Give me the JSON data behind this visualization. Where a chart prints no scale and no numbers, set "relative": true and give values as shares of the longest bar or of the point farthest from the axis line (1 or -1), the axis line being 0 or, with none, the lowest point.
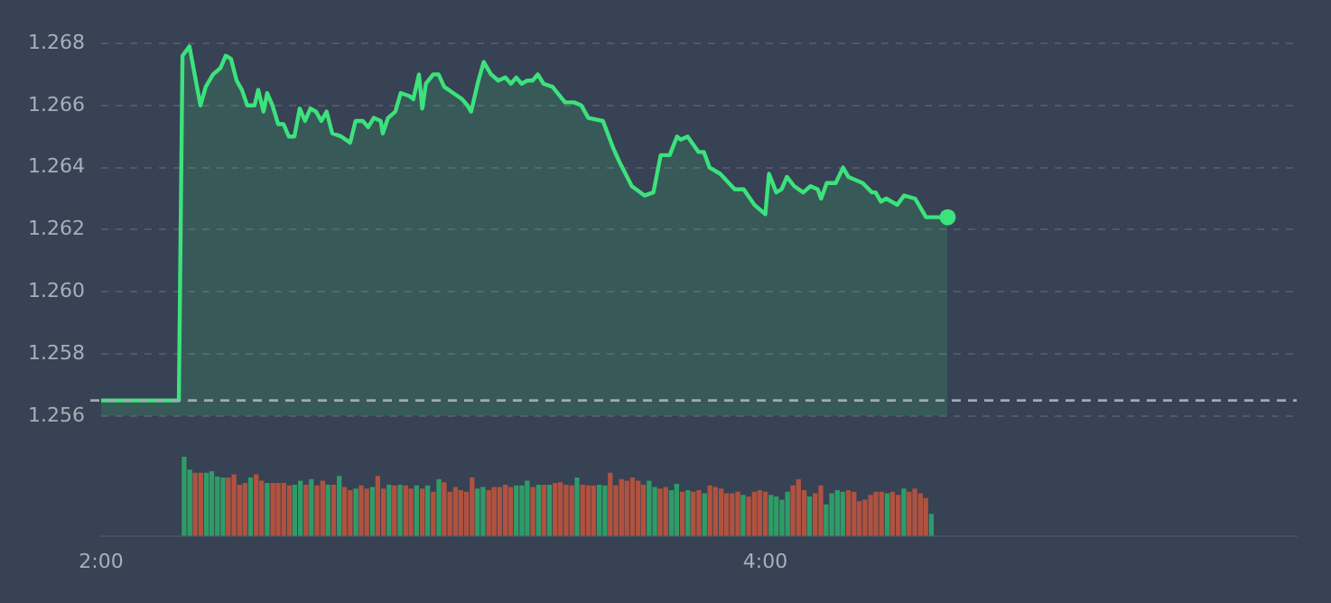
{
  "chart_data": [
    {
      "type": "area",
      "color": "#3ce27c",
      "marker": "none",
      "grid": "y",
      "legend": false,
      "tick_labels": "y",
      "x": [
        2.0,
        2.234,
        2.245,
        2.266,
        2.299,
        2.315,
        2.337,
        2.359,
        2.375,
        2.391,
        2.408,
        2.424,
        2.44,
        2.462,
        2.473,
        2.489,
        2.5,
        2.516,
        2.533,
        2.549,
        2.565,
        2.582,
        2.598,
        2.614,
        2.63,
        2.647,
        2.663,
        2.679,
        2.696,
        2.723,
        2.75,
        2.766,
        2.788,
        2.804,
        2.821,
        2.842,
        2.848,
        2.864,
        2.886,
        2.902,
        2.929,
        2.94,
        2.957,
        2.967,
        2.978,
        3.0,
        3.016,
        3.033,
        3.06,
        3.087,
        3.103,
        3.114,
        3.136,
        3.152,
        3.174,
        3.196,
        3.217,
        3.234,
        3.25,
        3.266,
        3.283,
        3.299,
        3.315,
        3.332,
        3.359,
        3.397,
        3.424,
        3.446,
        3.467,
        3.511,
        3.543,
        3.56,
        3.598,
        3.636,
        3.663,
        3.685,
        3.712,
        3.734,
        3.745,
        3.766,
        3.799,
        3.815,
        3.832,
        3.864,
        3.908,
        3.935,
        3.967,
        4.0,
        4.011,
        4.033,
        4.049,
        4.065,
        4.087,
        4.114,
        4.136,
        4.158,
        4.168,
        4.185,
        4.212,
        4.234,
        4.25,
        4.293,
        4.321,
        4.332,
        4.348,
        4.364,
        4.397,
        4.418,
        4.451,
        4.484,
        4.511,
        4.549
      ],
      "values": [
        1.2565,
        1.2565,
        1.2676,
        1.2679,
        1.266,
        1.2666,
        1.267,
        1.2672,
        1.2676,
        1.2675,
        1.2668,
        1.2665,
        1.266,
        1.266,
        1.2665,
        1.2658,
        1.2664,
        1.266,
        1.2654,
        1.2654,
        1.265,
        1.265,
        1.2659,
        1.2655,
        1.2659,
        1.2658,
        1.2655,
        1.2658,
        1.2651,
        1.265,
        1.2648,
        1.2655,
        1.2655,
        1.2653,
        1.2656,
        1.2655,
        1.2651,
        1.2656,
        1.2658,
        1.2664,
        1.2663,
        1.2662,
        1.267,
        1.2659,
        1.2667,
        1.267,
        1.267,
        1.2666,
        1.2664,
        1.2662,
        1.266,
        1.2658,
        1.2668,
        1.2674,
        1.267,
        1.2668,
        1.2669,
        1.2667,
        1.2669,
        1.2667,
        1.2668,
        1.2668,
        1.267,
        1.2667,
        1.2666,
        1.2661,
        1.2661,
        1.266,
        1.2656,
        1.2655,
        1.2646,
        1.2642,
        1.2634,
        1.2631,
        1.2632,
        1.2644,
        1.2644,
        1.265,
        1.2649,
        1.265,
        1.2645,
        1.2645,
        1.264,
        1.2638,
        1.2633,
        1.2633,
        1.2628,
        1.2625,
        1.2638,
        1.2632,
        1.2633,
        1.2637,
        1.2634,
        1.2632,
        1.2634,
        1.2633,
        1.263,
        1.2635,
        1.2635,
        1.264,
        1.2637,
        1.2635,
        1.2632,
        1.2632,
        1.2629,
        1.263,
        1.2628,
        1.2631,
        1.263,
        1.2624,
        1.2624,
        1.2624
      ],
      "xlim": [
        2,
        5.6
      ],
      "ylim": [
        1.256,
        1.268
      ],
      "yticks": [
        {
          "value": 1.256,
          "label": "1.256"
        },
        {
          "value": 1.258,
          "label": "1.258"
        },
        {
          "value": 1.26,
          "label": "1.260"
        },
        {
          "value": 1.262,
          "label": "1.262"
        },
        {
          "value": 1.264,
          "label": "1.264"
        },
        {
          "value": 1.266,
          "label": "1.266"
        },
        {
          "value": 1.268,
          "label": "1.268"
        }
      ],
      "ref_lines": [
        {
          "axis": "y",
          "value": 1.2565,
          "color": "#a3a9b3",
          "line_style": "dashed"
        }
      ]
    },
    {
      "type": "bar",
      "relative": true,
      "tick_labels": "x",
      "xlim": [
        2,
        5.6
      ],
      "xticks": [
        {
          "value": 2,
          "label": "2:00"
        },
        {
          "value": 4,
          "label": "4:00"
        }
      ],
      "x": [
        2.25,
        2.267,
        2.283,
        2.3,
        2.317,
        2.333,
        2.35,
        2.367,
        2.383,
        2.4,
        2.417,
        2.433,
        2.45,
        2.467,
        2.483,
        2.5,
        2.517,
        2.533,
        2.55,
        2.567,
        2.583,
        2.6,
        2.617,
        2.633,
        2.65,
        2.667,
        2.683,
        2.7,
        2.717,
        2.733,
        2.75,
        2.767,
        2.783,
        2.8,
        2.817,
        2.833,
        2.85,
        2.867,
        2.883,
        2.9,
        2.917,
        2.933,
        2.95,
        2.967,
        2.983,
        3.0,
        3.017,
        3.033,
        3.05,
        3.067,
        3.083,
        3.1,
        3.117,
        3.133,
        3.15,
        3.167,
        3.183,
        3.2,
        3.217,
        3.233,
        3.25,
        3.267,
        3.283,
        3.3,
        3.317,
        3.333,
        3.35,
        3.367,
        3.383,
        3.4,
        3.417,
        3.433,
        3.45,
        3.467,
        3.483,
        3.5,
        3.517,
        3.533,
        3.55,
        3.567,
        3.583,
        3.6,
        3.617,
        3.633,
        3.65,
        3.667,
        3.683,
        3.7,
        3.717,
        3.733,
        3.75,
        3.767,
        3.783,
        3.8,
        3.817,
        3.833,
        3.85,
        3.867,
        3.883,
        3.9,
        3.917,
        3.933,
        3.95,
        3.967,
        3.983,
        4.0,
        4.017,
        4.033,
        4.05,
        4.067,
        4.083,
        4.1,
        4.117,
        4.133,
        4.15,
        4.167,
        4.183,
        4.2,
        4.217,
        4.233,
        4.25,
        4.267,
        4.283,
        4.3,
        4.317,
        4.333,
        4.35,
        4.367,
        4.383,
        4.4,
        4.417,
        4.433,
        4.45,
        4.467,
        4.483,
        4.5
      ],
      "values": [
        1,
        0.83,
        0.79,
        0.79,
        0.79,
        0.81,
        0.74,
        0.73,
        0.73,
        0.77,
        0.64,
        0.66,
        0.73,
        0.77,
        0.69,
        0.66,
        0.66,
        0.66,
        0.66,
        0.63,
        0.64,
        0.69,
        0.64,
        0.71,
        0.63,
        0.69,
        0.64,
        0.64,
        0.75,
        0.61,
        0.57,
        0.59,
        0.63,
        0.59,
        0.61,
        0.75,
        0.59,
        0.64,
        0.63,
        0.64,
        0.63,
        0.59,
        0.63,
        0.59,
        0.63,
        0.55,
        0.71,
        0.67,
        0.55,
        0.61,
        0.57,
        0.55,
        0.73,
        0.59,
        0.61,
        0.57,
        0.61,
        0.61,
        0.64,
        0.61,
        0.63,
        0.63,
        0.69,
        0.61,
        0.64,
        0.64,
        0.64,
        0.66,
        0.67,
        0.64,
        0.63,
        0.73,
        0.64,
        0.63,
        0.63,
        0.64,
        0.63,
        0.79,
        0.63,
        0.71,
        0.69,
        0.73,
        0.69,
        0.64,
        0.69,
        0.61,
        0.59,
        0.61,
        0.57,
        0.65,
        0.55,
        0.57,
        0.55,
        0.57,
        0.53,
        0.63,
        0.61,
        0.59,
        0.53,
        0.53,
        0.55,
        0.51,
        0.49,
        0.55,
        0.57,
        0.55,
        0.51,
        0.49,
        0.45,
        0.55,
        0.63,
        0.71,
        0.57,
        0.49,
        0.53,
        0.63,
        0.39,
        0.53,
        0.57,
        0.55,
        0.57,
        0.55,
        0.43,
        0.45,
        0.51,
        0.55,
        0.55,
        0.53,
        0.55,
        0.51,
        0.59,
        0.55,
        0.59,
        0.53,
        0.47,
        0.27
      ],
      "colors": [
        "#2f9c68",
        "#2f9c68",
        "#b0523f",
        "#b0523f",
        "#2f9c68",
        "#2f9c68",
        "#2f9c68",
        "#2f9c68",
        "#b0523f",
        "#b0523f",
        "#b0523f",
        "#b0523f",
        "#2f9c68",
        "#b0523f",
        "#b0523f",
        "#2f9c68",
        "#b0523f",
        "#b0523f",
        "#b0523f",
        "#b0523f",
        "#2f9c68",
        "#2f9c68",
        "#b0523f",
        "#2f9c68",
        "#b0523f",
        "#b0523f",
        "#2f9c68",
        "#b0523f",
        "#2f9c68",
        "#b0523f",
        "#b0523f",
        "#2f9c68",
        "#b0523f",
        "#b0523f",
        "#2f9c68",
        "#b0523f",
        "#b0523f",
        "#2f9c68",
        "#b0523f",
        "#2f9c68",
        "#b0523f",
        "#b0523f",
        "#2f9c68",
        "#b0523f",
        "#2f9c68",
        "#b0523f",
        "#2f9c68",
        "#b0523f",
        "#b0523f",
        "#b0523f",
        "#b0523f",
        "#b0523f",
        "#b0523f",
        "#2f9c68",
        "#2f9c68",
        "#b0523f",
        "#b0523f",
        "#b0523f",
        "#b0523f",
        "#b0523f",
        "#2f9c68",
        "#2f9c68",
        "#2f9c68",
        "#b0523f",
        "#2f9c68",
        "#b0523f",
        "#2f9c68",
        "#b0523f",
        "#b0523f",
        "#b0523f",
        "#b0523f",
        "#2f9c68",
        "#b0523f",
        "#b0523f",
        "#b0523f",
        "#2f9c68",
        "#2f9c68",
        "#b0523f",
        "#b0523f",
        "#b0523f",
        "#b0523f",
        "#b0523f",
        "#b0523f",
        "#b0523f",
        "#2f9c68",
        "#2f9c68",
        "#b0523f",
        "#b0523f",
        "#2f9c68",
        "#2f9c68",
        "#b0523f",
        "#2f9c68",
        "#b0523f",
        "#b0523f",
        "#2f9c68",
        "#b0523f",
        "#b0523f",
        "#b0523f",
        "#b0523f",
        "#b0523f",
        "#b0523f",
        "#2f9c68",
        "#b0523f",
        "#b0523f",
        "#b0523f",
        "#b0523f",
        "#2f9c68",
        "#2f9c68",
        "#2f9c68",
        "#2f9c68",
        "#b0523f",
        "#b0523f",
        "#b0523f",
        "#2f9c68",
        "#b0523f",
        "#b0523f",
        "#2f9c68",
        "#2f9c68",
        "#2f9c68",
        "#2f9c68",
        "#b0523f",
        "#b0523f",
        "#b0523f",
        "#b0523f",
        "#b0523f",
        "#b0523f",
        "#b0523f",
        "#2f9c68",
        "#b0523f",
        "#b0523f",
        "#2f9c68",
        "#b0523f",
        "#b0523f",
        "#b0523f",
        "#b0523f",
        "#2f9c68"
      ]
    }
  ]
}
